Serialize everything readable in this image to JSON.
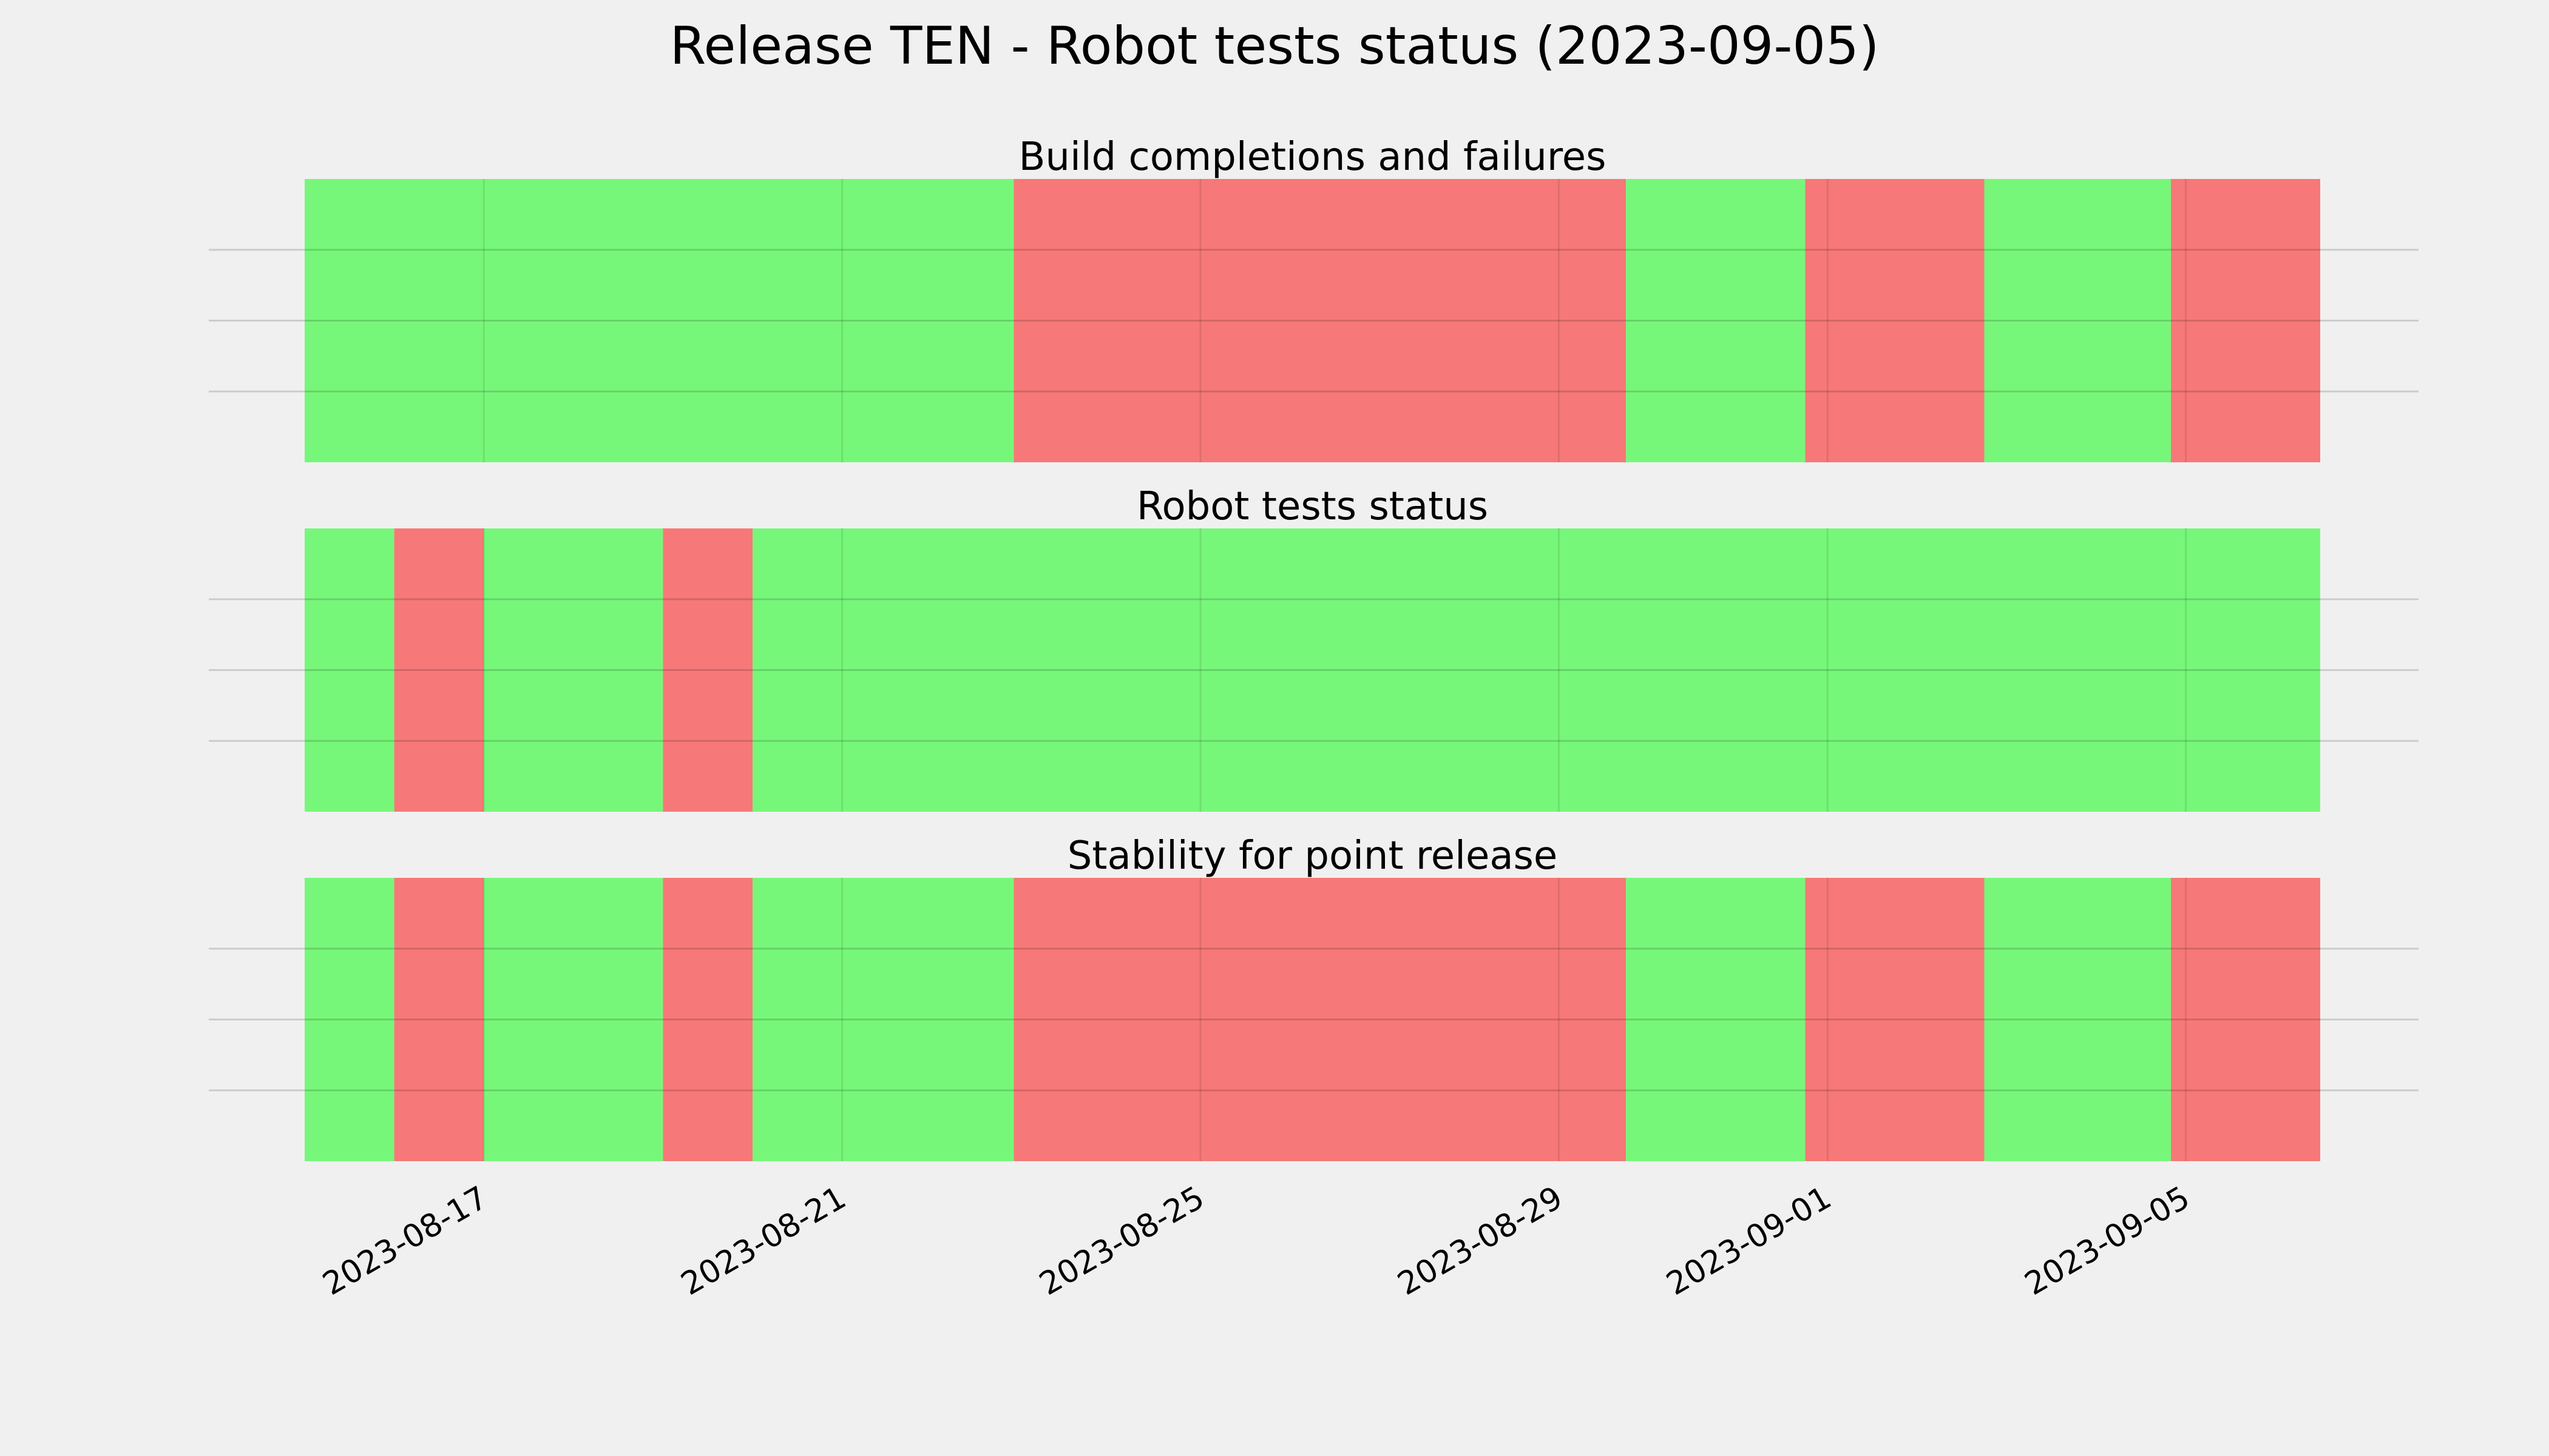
{
  "chart_data": {
    "type": "timeline",
    "title": "Release TEN - Robot tests status (2023-09-05)",
    "colors": {
      "pass": "#77f77a",
      "fail": "#f77878",
      "background": "#f0f0f0",
      "grid": "#c8c8c8"
    },
    "x_range": [
      "2023-08-15",
      "2023-09-06T12:00"
    ],
    "x_ticks": [
      "2023-08-17",
      "2023-08-21",
      "2023-08-25",
      "2023-08-29",
      "2023-09-01",
      "2023-09-05"
    ],
    "grid": true,
    "panels": [
      {
        "title": "Build completions and failures",
        "segments": [
          {
            "start": "2023-08-15",
            "end": "2023-08-22T22:00",
            "status": "pass"
          },
          {
            "start": "2023-08-22T22:00",
            "end": "2023-08-29T18:00",
            "status": "fail"
          },
          {
            "start": "2023-08-29T18:00",
            "end": "2023-08-31T18:00",
            "status": "pass"
          },
          {
            "start": "2023-08-31T18:00",
            "end": "2023-09-02T18:00",
            "status": "fail"
          },
          {
            "start": "2023-09-02T18:00",
            "end": "2023-09-04T20:00",
            "status": "pass"
          },
          {
            "start": "2023-09-04T20:00",
            "end": "2023-09-06T12:00",
            "status": "fail"
          }
        ]
      },
      {
        "title": "Robot tests status",
        "segments": [
          {
            "start": "2023-08-15",
            "end": "2023-08-16",
            "status": "pass"
          },
          {
            "start": "2023-08-16",
            "end": "2023-08-17",
            "status": "fail"
          },
          {
            "start": "2023-08-17",
            "end": "2023-08-19",
            "status": "pass"
          },
          {
            "start": "2023-08-19",
            "end": "2023-08-20",
            "status": "fail"
          },
          {
            "start": "2023-08-20",
            "end": "2023-09-06T12:00",
            "status": "pass"
          }
        ]
      },
      {
        "title": "Stability for point release",
        "segments": [
          {
            "start": "2023-08-15",
            "end": "2023-08-16",
            "status": "pass"
          },
          {
            "start": "2023-08-16",
            "end": "2023-08-17",
            "status": "fail"
          },
          {
            "start": "2023-08-17",
            "end": "2023-08-19",
            "status": "pass"
          },
          {
            "start": "2023-08-19",
            "end": "2023-08-20",
            "status": "fail"
          },
          {
            "start": "2023-08-20",
            "end": "2023-08-22T22:00",
            "status": "pass"
          },
          {
            "start": "2023-08-22T22:00",
            "end": "2023-08-29T18:00",
            "status": "fail"
          },
          {
            "start": "2023-08-29T18:00",
            "end": "2023-08-31T18:00",
            "status": "pass"
          },
          {
            "start": "2023-08-31T18:00",
            "end": "2023-09-02T18:00",
            "status": "fail"
          },
          {
            "start": "2023-09-02T18:00",
            "end": "2023-09-04T20:00",
            "status": "pass"
          },
          {
            "start": "2023-09-04T20:00",
            "end": "2023-09-06T12:00",
            "status": "fail"
          }
        ]
      }
    ]
  }
}
